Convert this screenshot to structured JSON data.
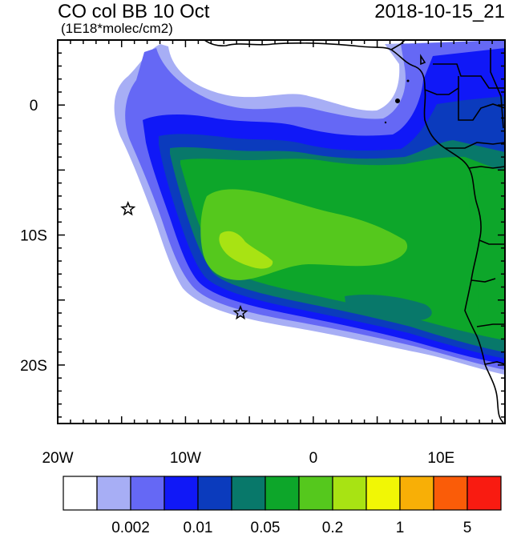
{
  "title": "CO col BB 10 Oct",
  "units": "(1E18*molec/cm2)",
  "timestamp": "2018-10-15_21",
  "axes": {
    "x_ticks": [
      {
        "value": -20,
        "label": "20W"
      },
      {
        "value": -10,
        "label": "10W"
      },
      {
        "value": 0,
        "label": "0"
      },
      {
        "value": 10,
        "label": "10E"
      }
    ],
    "y_ticks": [
      {
        "value": 0,
        "label": "0"
      },
      {
        "value": -10,
        "label": "10S"
      },
      {
        "value": -20,
        "label": "20S"
      }
    ],
    "lon_range": [
      -20,
      15
    ],
    "lat_range": [
      -24.5,
      5
    ]
  },
  "markers": [
    {
      "name": "star",
      "lon": -14.5,
      "lat": -8.0
    },
    {
      "name": "star",
      "lon": -5.7,
      "lat": -16.0
    }
  ],
  "colorbar": {
    "colors": [
      "#ffffff",
      "#a7aef5",
      "#6568f5",
      "#1018f7",
      "#0b3bbd",
      "#08786a",
      "#0da62a",
      "#55c81d",
      "#a8e313",
      "#f1f705",
      "#f8af06",
      "#fa5c08",
      "#f91b11"
    ],
    "labels": [
      "0.002",
      "0.01",
      "0.05",
      "0.2",
      "1",
      "5"
    ]
  },
  "palette": {
    "land_outline": "#000000",
    "frame": "#000000"
  }
}
